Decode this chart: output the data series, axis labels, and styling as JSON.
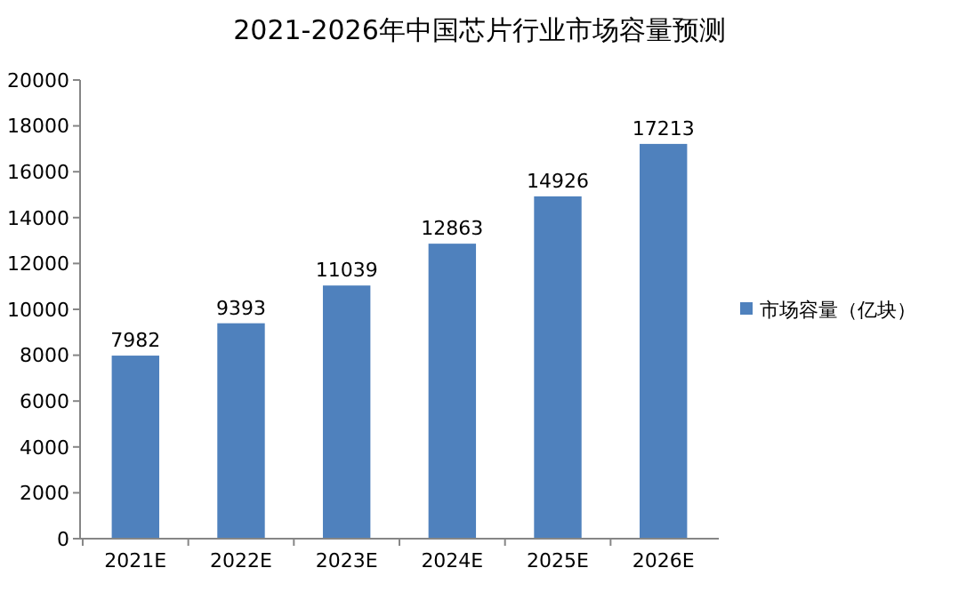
{
  "chart_data": {
    "type": "bar",
    "title": "2021-2026年中国芯片行业市场容量预测",
    "categories": [
      "2021E",
      "2022E",
      "2023E",
      "2024E",
      "2025E",
      "2026E"
    ],
    "series": [
      {
        "name": "市场容量（亿块）",
        "color": "#4f81bd",
        "values": [
          7982,
          9393,
          11039,
          12863,
          14926,
          17213
        ]
      }
    ],
    "ylim": [
      0,
      20000
    ],
    "yticks": [
      0,
      2000,
      4000,
      6000,
      8000,
      10000,
      12000,
      14000,
      16000,
      18000,
      20000
    ],
    "data_labels": true,
    "legend": "right",
    "grid": false
  }
}
